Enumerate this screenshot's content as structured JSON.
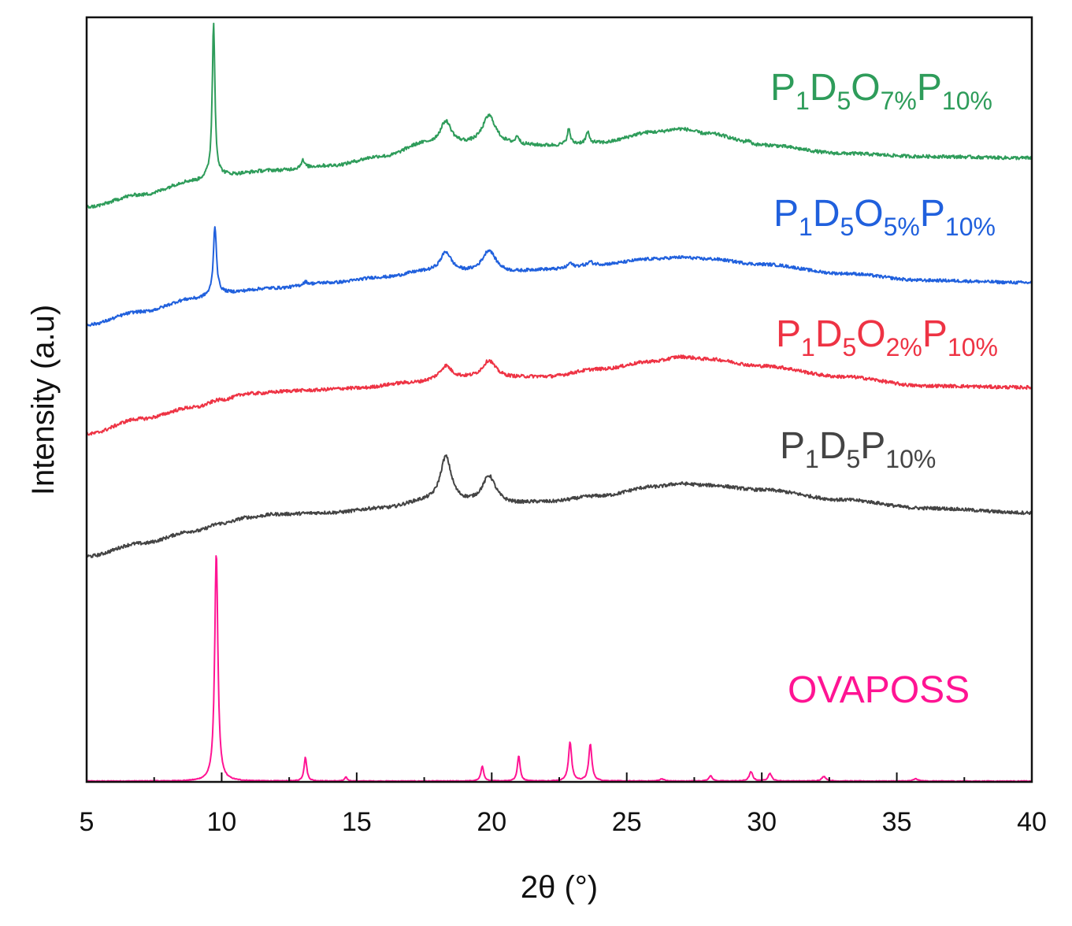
{
  "chart_data": {
    "type": "line",
    "title": "",
    "xlabel": "2θ (°)",
    "ylabel": "Intensity (a.u)",
    "xlim": [
      5,
      40
    ],
    "ylim": [
      0,
      100
    ],
    "x_major_ticks": [
      5,
      10,
      15,
      20,
      25,
      30,
      35,
      40
    ],
    "x_tick_labels": [
      "5",
      "10",
      "15",
      "20",
      "25",
      "30",
      "35",
      "40"
    ],
    "x_minor_step": 2.5,
    "y_ticks_shown": false,
    "legend": "inline labels to the right of each curve",
    "series": [
      {
        "key": "ovaposs",
        "name": "OVAPOSS",
        "label_parts": [
          {
            "t": "OVAPOSS",
            "sub": false
          }
        ],
        "color": "#ff1493",
        "baseline_y": 0.1,
        "peaks": [
          {
            "x": 9.8,
            "h": 30.0,
            "w": 0.07
          },
          {
            "x": 13.1,
            "h": 3.1,
            "w": 0.06
          },
          {
            "x": 14.6,
            "h": 0.5,
            "w": 0.06
          },
          {
            "x": 19.65,
            "h": 2.0,
            "w": 0.06
          },
          {
            "x": 21.0,
            "h": 3.3,
            "w": 0.06
          },
          {
            "x": 22.9,
            "h": 5.1,
            "w": 0.07
          },
          {
            "x": 23.65,
            "h": 4.8,
            "w": 0.07
          },
          {
            "x": 26.3,
            "h": 0.3,
            "w": 0.1
          },
          {
            "x": 28.1,
            "h": 0.7,
            "w": 0.08
          },
          {
            "x": 29.6,
            "h": 1.2,
            "w": 0.08
          },
          {
            "x": 30.3,
            "h": 1.0,
            "w": 0.08
          },
          {
            "x": 32.3,
            "h": 0.6,
            "w": 0.1
          },
          {
            "x": 35.7,
            "h": 0.3,
            "w": 0.1
          }
        ],
        "noise": 0.05
      },
      {
        "key": "p1d5p10",
        "name": "P1D5P10%",
        "label_parts": [
          {
            "t": "P",
            "sub": false
          },
          {
            "t": "1",
            "sub": true
          },
          {
            "t": "D",
            "sub": false
          },
          {
            "t": "5",
            "sub": true
          },
          {
            "t": "P",
            "sub": false
          },
          {
            "t": "10%",
            "sub": true
          }
        ],
        "color": "#444444",
        "baseline": [
          [
            5,
            29.5
          ],
          [
            7,
            31.2
          ],
          [
            9,
            32.8
          ],
          [
            10,
            33.8
          ],
          [
            11,
            34.6
          ],
          [
            12,
            35.0
          ],
          [
            14,
            35.2
          ],
          [
            16,
            35.8
          ],
          [
            17.5,
            36.6
          ],
          [
            19,
            36.4
          ],
          [
            20.5,
            36.3
          ],
          [
            22,
            36.6
          ],
          [
            24,
            37.4
          ],
          [
            26,
            38.6
          ],
          [
            27,
            39.0
          ],
          [
            28,
            38.8
          ],
          [
            30,
            38.2
          ],
          [
            33,
            36.9
          ],
          [
            36,
            35.8
          ],
          [
            40,
            35.2
          ]
        ],
        "peaks": [
          {
            "x": 18.3,
            "h": 6.0,
            "w": 0.25
          },
          {
            "x": 19.9,
            "h": 3.6,
            "w": 0.3
          }
        ],
        "noise": 0.22
      },
      {
        "key": "p1d5o2p10",
        "name": "P1D5O2%P10%",
        "label_parts": [
          {
            "t": "P",
            "sub": false
          },
          {
            "t": "1",
            "sub": true
          },
          {
            "t": "D",
            "sub": false
          },
          {
            "t": "5",
            "sub": true
          },
          {
            "t": "O",
            "sub": false
          },
          {
            "t": "2%",
            "sub": true
          },
          {
            "t": "P",
            "sub": false
          },
          {
            "t": "10%",
            "sub": true
          }
        ],
        "color": "#ee3344",
        "baseline": [
          [
            5,
            45.5
          ],
          [
            7,
            47.5
          ],
          [
            9,
            49.0
          ],
          [
            10,
            50.0
          ],
          [
            11,
            50.8
          ],
          [
            13,
            51.2
          ],
          [
            15,
            51.5
          ],
          [
            17,
            52.2
          ],
          [
            18.5,
            52.8
          ],
          [
            20,
            52.8
          ],
          [
            22,
            53.0
          ],
          [
            24,
            54.0
          ],
          [
            26,
            55.0
          ],
          [
            27,
            55.6
          ],
          [
            28,
            55.3
          ],
          [
            30,
            54.4
          ],
          [
            33,
            53.0
          ],
          [
            36,
            51.8
          ],
          [
            40,
            51.6
          ]
        ],
        "peaks": [
          {
            "x": 18.3,
            "h": 1.6,
            "w": 0.25
          },
          {
            "x": 19.9,
            "h": 2.3,
            "w": 0.3
          }
        ],
        "noise": 0.22
      },
      {
        "key": "p1d5o5p10",
        "name": "P1D5O5%P10%",
        "label_parts": [
          {
            "t": "P",
            "sub": false
          },
          {
            "t": "1",
            "sub": true
          },
          {
            "t": "D",
            "sub": false
          },
          {
            "t": "5",
            "sub": true
          },
          {
            "t": "O",
            "sub": false
          },
          {
            "t": "5%",
            "sub": true
          },
          {
            "t": "P",
            "sub": false
          },
          {
            "t": "10%",
            "sub": true
          }
        ],
        "color": "#2060dd",
        "baseline": [
          [
            5,
            59.8
          ],
          [
            7,
            61.5
          ],
          [
            9,
            63.2
          ],
          [
            9.6,
            63.6
          ],
          [
            10,
            64.0
          ],
          [
            12,
            64.6
          ],
          [
            14,
            65.3
          ],
          [
            16,
            66.0
          ],
          [
            17.5,
            66.7
          ],
          [
            19,
            66.6
          ],
          [
            20.5,
            66.6
          ],
          [
            22,
            67.0
          ],
          [
            24,
            67.7
          ],
          [
            26,
            68.4
          ],
          [
            27,
            68.6
          ],
          [
            28,
            68.4
          ],
          [
            30,
            67.7
          ],
          [
            33,
            66.5
          ],
          [
            36,
            65.6
          ],
          [
            40,
            65.3
          ]
        ],
        "peaks": [
          {
            "x": 9.75,
            "h": 9.0,
            "w": 0.07
          },
          {
            "x": 13.1,
            "h": 0.4,
            "w": 0.1
          },
          {
            "x": 18.3,
            "h": 2.6,
            "w": 0.25
          },
          {
            "x": 19.9,
            "h": 2.9,
            "w": 0.3
          },
          {
            "x": 22.9,
            "h": 0.6,
            "w": 0.08
          },
          {
            "x": 23.65,
            "h": 0.4,
            "w": 0.08
          }
        ],
        "noise": 0.2
      },
      {
        "key": "p1d5o7p10",
        "name": "P1D5O7%P10%",
        "label_parts": [
          {
            "t": "P",
            "sub": false
          },
          {
            "t": "1",
            "sub": true
          },
          {
            "t": "D",
            "sub": false
          },
          {
            "t": "5",
            "sub": true
          },
          {
            "t": "O",
            "sub": false
          },
          {
            "t": "7%",
            "sub": true
          },
          {
            "t": "P",
            "sub": false
          },
          {
            "t": "10%",
            "sub": true
          }
        ],
        "color": "#2e9c5a",
        "baseline": [
          [
            5,
            75.2
          ],
          [
            7,
            76.8
          ],
          [
            9,
            78.6
          ],
          [
            9.6,
            79.2
          ],
          [
            10,
            79.4
          ],
          [
            12,
            80.0
          ],
          [
            14,
            80.6
          ],
          [
            16,
            81.8
          ],
          [
            17.5,
            83.4
          ],
          [
            19,
            83.3
          ],
          [
            20.5,
            83.3
          ],
          [
            22,
            83.2
          ],
          [
            24,
            83.6
          ],
          [
            26,
            85.0
          ],
          [
            27,
            85.4
          ],
          [
            28,
            84.8
          ],
          [
            30,
            83.3
          ],
          [
            33,
            82.2
          ],
          [
            36,
            81.8
          ],
          [
            40,
            81.6
          ]
        ],
        "peaks": [
          {
            "x": 9.7,
            "h": 20.0,
            "w": 0.06
          },
          {
            "x": 13.0,
            "h": 1.0,
            "w": 0.08
          },
          {
            "x": 18.3,
            "h": 3.0,
            "w": 0.25
          },
          {
            "x": 19.9,
            "h": 3.8,
            "w": 0.3
          },
          {
            "x": 20.95,
            "h": 1.0,
            "w": 0.07
          },
          {
            "x": 22.85,
            "h": 2.0,
            "w": 0.07
          },
          {
            "x": 23.55,
            "h": 1.4,
            "w": 0.07
          },
          {
            "x": 29.5,
            "h": 0.4,
            "w": 0.1
          }
        ],
        "noise": 0.22
      }
    ]
  }
}
